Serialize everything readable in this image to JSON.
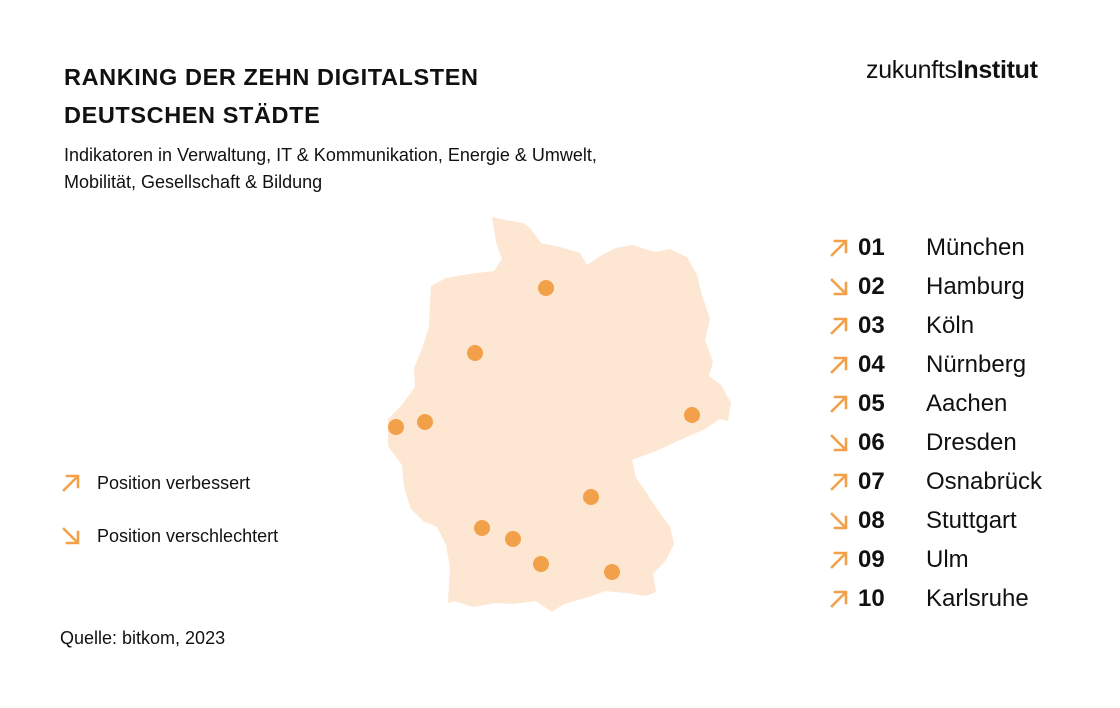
{
  "title_lines": [
    "RANKING DER ZEHN DIGITALSTEN",
    "DEUTSCHEN STÄDTE"
  ],
  "subtitle_lines": [
    "Indikatoren in Verwaltung, IT & Kommunikation, Energie & Umwelt,",
    "Mobilität, Gesellschaft & Bildung"
  ],
  "logo": {
    "light": "zukunfts",
    "bold": "Institut"
  },
  "colors": {
    "accent": "#f2a14a",
    "map_fill": "#fde6d2",
    "dot": "#f2a14a",
    "text": "#111111"
  },
  "legend": [
    {
      "icon": "arrow-up-right-icon",
      "label": "Position verbessert"
    },
    {
      "icon": "arrow-down-right-icon",
      "label": "Position verschlechtert"
    }
  ],
  "ranking": [
    {
      "rank": "01",
      "city": "München",
      "trend": "up"
    },
    {
      "rank": "02",
      "city": "Hamburg",
      "trend": "down"
    },
    {
      "rank": "03",
      "city": "Köln",
      "trend": "up"
    },
    {
      "rank": "04",
      "city": "Nürnberg",
      "trend": "up"
    },
    {
      "rank": "05",
      "city": "Aachen",
      "trend": "up"
    },
    {
      "rank": "06",
      "city": "Dresden",
      "trend": "down"
    },
    {
      "rank": "07",
      "city": "Osnabrück",
      "trend": "up"
    },
    {
      "rank": "08",
      "city": "Stuttgart",
      "trend": "down"
    },
    {
      "rank": "09",
      "city": "Ulm",
      "trend": "up"
    },
    {
      "rank": "10",
      "city": "Karlsruhe",
      "trend": "up"
    }
  ],
  "map": {
    "country_shape": "germany-outline",
    "city_markers": [
      "Hamburg",
      "Osnabrück",
      "Köln",
      "Aachen",
      "Dresden",
      "Nürnberg",
      "Karlsruhe",
      "Stuttgart",
      "Ulm",
      "München"
    ]
  },
  "source": "Quelle: bitkom, 2023"
}
